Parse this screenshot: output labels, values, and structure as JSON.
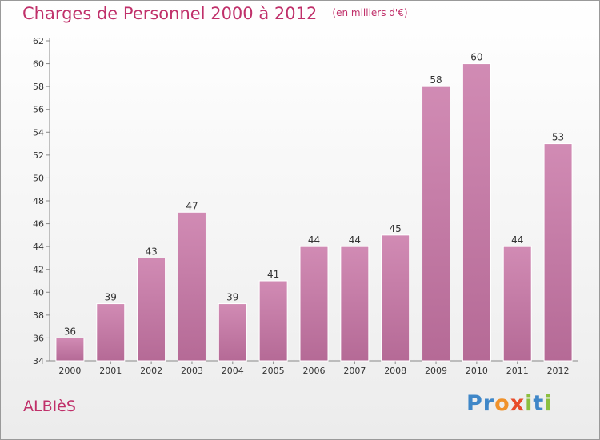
{
  "page": {
    "title": "Charges de Personnel 2000 à 2012",
    "subtitle": "(en milliers d'€)",
    "town": "ALBIèS",
    "logo": {
      "text": "Proxiti",
      "letters": [
        {
          "ch": "P",
          "color": "#3f87c8"
        },
        {
          "ch": "r",
          "color": "#3f87c8"
        },
        {
          "ch": "o",
          "color": "#f0922b"
        },
        {
          "ch": "x",
          "color": "#e84c2b"
        },
        {
          "ch": "i",
          "color": "#8cbf3f"
        },
        {
          "ch": "t",
          "color": "#3f87c8"
        },
        {
          "ch": "i",
          "color": "#8cbf3f"
        }
      ]
    }
  },
  "chart_data": {
    "type": "bar",
    "categories": [
      "2000",
      "2001",
      "2002",
      "2003",
      "2004",
      "2005",
      "2006",
      "2007",
      "2008",
      "2009",
      "2010",
      "2011",
      "2012"
    ],
    "values": [
      36,
      39,
      43,
      47,
      39,
      41,
      44,
      44,
      45,
      58,
      60,
      44,
      53
    ],
    "title": "Charges de Personnel 2000 à 2012",
    "subtitle": "(en milliers d'€)",
    "ylim": [
      34,
      62
    ],
    "yticks": [
      34,
      36,
      38,
      40,
      42,
      44,
      46,
      48,
      50,
      52,
      54,
      56,
      58,
      60,
      62
    ],
    "grid": false,
    "legend": "none",
    "bar_color": "#d18bb4",
    "bar_color_dark": "#b56a96",
    "axis_color": "#888888",
    "label_color": "#333333"
  }
}
